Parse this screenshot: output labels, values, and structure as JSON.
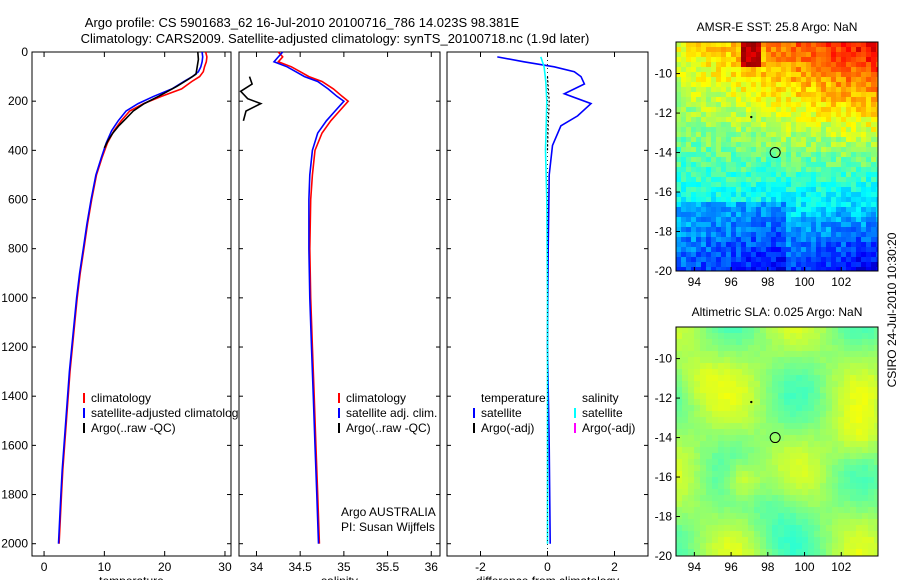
{
  "title": {
    "line1": "Argo profile: CS 5901683_62 16-Jul-2010 20100716_786 14.023S 98.381E",
    "line2": "Climatology: CARS2009. Satellite-adjusted climatology: synTS_20100718.nc (1.9d later)"
  },
  "side_label": "CSIRO 24-Jul-2010 10:30:20",
  "colors": {
    "climatology": "#ff0000",
    "satellite": "#0000ff",
    "argo": "#000000",
    "satellite_sal": "#00ffff",
    "argo_adj_sal": "#ff00ff"
  },
  "chart_data": [
    {
      "type": "line",
      "id": "temperature",
      "xlabel": "temperature",
      "xlim": [
        -2,
        31
      ],
      "ylim": [
        2050,
        0
      ],
      "xticks": [
        0,
        10,
        20,
        30
      ],
      "yticks": [
        0,
        200,
        400,
        600,
        800,
        1000,
        1200,
        1400,
        1600,
        1800,
        2000
      ],
      "legend": [
        "climatology",
        "satellite-adjusted climatology",
        "Argo(..raw -QC)"
      ],
      "series": [
        {
          "name": "climatology",
          "color": "#ff0000",
          "points": [
            [
              26.8,
              0
            ],
            [
              27.0,
              20
            ],
            [
              26.9,
              40
            ],
            [
              26.6,
              60
            ],
            [
              26.4,
              80
            ],
            [
              25.8,
              100
            ],
            [
              24.5,
              120
            ],
            [
              22.8,
              150
            ],
            [
              19.5,
              180
            ],
            [
              16.5,
              210
            ],
            [
              14.2,
              240
            ],
            [
              12.8,
              280
            ],
            [
              11.6,
              320
            ],
            [
              10.5,
              370
            ],
            [
              9.6,
              430
            ],
            [
              8.7,
              500
            ],
            [
              7.9,
              600
            ],
            [
              7.2,
              700
            ],
            [
              6.6,
              800
            ],
            [
              6.0,
              900
            ],
            [
              5.5,
              1000
            ],
            [
              5.1,
              1100
            ],
            [
              4.7,
              1200
            ],
            [
              4.3,
              1300
            ],
            [
              4.0,
              1400
            ],
            [
              3.7,
              1500
            ],
            [
              3.4,
              1600
            ],
            [
              3.1,
              1700
            ],
            [
              2.9,
              1800
            ],
            [
              2.7,
              1900
            ],
            [
              2.5,
              2000
            ]
          ]
        },
        {
          "name": "satellite-adjusted climatology",
          "color": "#0000ff",
          "points": [
            [
              26.2,
              0
            ],
            [
              26.3,
              20
            ],
            [
              26.2,
              40
            ],
            [
              26.0,
              60
            ],
            [
              25.6,
              80
            ],
            [
              24.6,
              100
            ],
            [
              23.2,
              120
            ],
            [
              21.2,
              150
            ],
            [
              18.2,
              180
            ],
            [
              15.6,
              210
            ],
            [
              13.6,
              240
            ],
            [
              12.3,
              280
            ],
            [
              11.2,
              320
            ],
            [
              10.3,
              370
            ],
            [
              9.5,
              430
            ],
            [
              8.6,
              500
            ],
            [
              7.8,
              600
            ],
            [
              7.1,
              700
            ],
            [
              6.5,
              800
            ],
            [
              5.9,
              900
            ],
            [
              5.4,
              1000
            ],
            [
              5.0,
              1100
            ],
            [
              4.6,
              1200
            ],
            [
              4.2,
              1300
            ],
            [
              3.9,
              1400
            ],
            [
              3.6,
              1500
            ],
            [
              3.3,
              1600
            ],
            [
              3.0,
              1700
            ],
            [
              2.8,
              1800
            ],
            [
              2.6,
              1900
            ],
            [
              2.4,
              2000
            ]
          ]
        },
        {
          "name": "Argo(..raw -QC)",
          "color": "#000000",
          "points": [
            [
              25.5,
              0
            ],
            [
              25.6,
              30
            ],
            [
              25.4,
              60
            ],
            [
              25.2,
              90
            ],
            [
              24.0,
              110
            ],
            [
              22.0,
              140
            ],
            [
              19.0,
              180
            ],
            [
              16.6,
              210
            ],
            [
              14.8,
              240
            ],
            [
              13.6,
              270
            ],
            [
              12.4,
              300
            ],
            [
              11.4,
              330
            ],
            [
              10.6,
              360
            ],
            [
              10.0,
              390
            ]
          ]
        }
      ]
    },
    {
      "type": "line",
      "id": "salinity",
      "xlabel": "salinity",
      "xlim": [
        33.8,
        36.1
      ],
      "ylim": [
        2050,
        0
      ],
      "xticks": [
        34,
        34.5,
        35,
        35.5,
        36
      ],
      "legend": [
        "climatology",
        "satellite adj. clim.",
        "Argo(..raw -QC)"
      ],
      "annotation": [
        "Argo AUSTRALIA",
        "PI: Susan Wijffels"
      ],
      "series": [
        {
          "name": "climatology",
          "color": "#ff0000",
          "points": [
            [
              34.25,
              0
            ],
            [
              34.3,
              20
            ],
            [
              34.25,
              40
            ],
            [
              34.4,
              60
            ],
            [
              34.5,
              80
            ],
            [
              34.6,
              100
            ],
            [
              34.75,
              120
            ],
            [
              34.88,
              150
            ],
            [
              34.98,
              180
            ],
            [
              35.05,
              200
            ],
            [
              34.95,
              240
            ],
            [
              34.85,
              280
            ],
            [
              34.75,
              330
            ],
            [
              34.67,
              400
            ],
            [
              34.64,
              500
            ],
            [
              34.62,
              600
            ],
            [
              34.61,
              800
            ],
            [
              34.62,
              1000
            ],
            [
              34.64,
              1200
            ],
            [
              34.66,
              1400
            ],
            [
              34.68,
              1600
            ],
            [
              34.7,
              1800
            ],
            [
              34.72,
              2000
            ]
          ]
        },
        {
          "name": "satellite adj. clim.",
          "color": "#0000ff",
          "points": [
            [
              34.3,
              0
            ],
            [
              34.25,
              20
            ],
            [
              34.2,
              40
            ],
            [
              34.35,
              60
            ],
            [
              34.45,
              80
            ],
            [
              34.55,
              100
            ],
            [
              34.7,
              120
            ],
            [
              34.82,
              150
            ],
            [
              34.92,
              180
            ],
            [
              35.0,
              200
            ],
            [
              34.9,
              240
            ],
            [
              34.8,
              280
            ],
            [
              34.7,
              330
            ],
            [
              34.64,
              400
            ],
            [
              34.61,
              500
            ],
            [
              34.6,
              600
            ],
            [
              34.6,
              800
            ],
            [
              34.61,
              1000
            ],
            [
              34.63,
              1200
            ],
            [
              34.65,
              1400
            ],
            [
              34.67,
              1600
            ],
            [
              34.69,
              1800
            ],
            [
              34.71,
              2000
            ]
          ]
        },
        {
          "name": "Argo(..raw -QC)",
          "color": "#000000",
          "points": [
            [
              33.92,
              100
            ],
            [
              33.95,
              130
            ],
            [
              33.82,
              160
            ],
            [
              33.9,
              190
            ],
            [
              34.05,
              210
            ],
            [
              33.88,
              240
            ],
            [
              33.85,
              280
            ]
          ]
        }
      ]
    },
    {
      "type": "line",
      "id": "difference",
      "xlabel": "difference from climatology",
      "xlim": [
        -3.0,
        3.0
      ],
      "ylim": [
        2050,
        0
      ],
      "xticks": [
        -2,
        0,
        2
      ],
      "legend_temperature": {
        "header": "temperature",
        "items": [
          "satellite",
          "Argo(-adj)"
        ]
      },
      "legend_salinity": {
        "header": "salinity",
        "items": [
          "satellite",
          "Argo(-adj)"
        ]
      },
      "series": [
        {
          "name": "temperature satellite",
          "color": "#0000ff",
          "points": [
            [
              -1.5,
              20
            ],
            [
              -0.7,
              40
            ],
            [
              0.2,
              60
            ],
            [
              0.8,
              80
            ],
            [
              1.0,
              100
            ],
            [
              1.1,
              130
            ],
            [
              0.5,
              170
            ],
            [
              1.3,
              210
            ],
            [
              0.9,
              260
            ],
            [
              0.4,
              300
            ],
            [
              0.15,
              380
            ],
            [
              0.05,
              500
            ],
            [
              0.02,
              800
            ],
            [
              0.0,
              1200
            ],
            [
              0.05,
              1600
            ],
            [
              0.08,
              2000
            ]
          ]
        },
        {
          "name": "salinity satellite",
          "color": "#00ffff",
          "points": [
            [
              -0.2,
              20
            ],
            [
              -0.1,
              60
            ],
            [
              -0.05,
              120
            ],
            [
              -0.02,
              200
            ],
            [
              -0.04,
              300
            ],
            [
              -0.06,
              400
            ],
            [
              -0.02,
              600
            ],
            [
              0.0,
              1000
            ],
            [
              0.0,
              1600
            ],
            [
              0.0,
              2000
            ]
          ]
        },
        {
          "name": "temperature Argo(-adj)",
          "color": "#000000",
          "dotted": true,
          "points": [
            [
              0.0,
              100
            ],
            [
              0.05,
              200
            ],
            [
              0.02,
              300
            ],
            [
              0.0,
              400
            ]
          ]
        }
      ]
    },
    {
      "type": "heatmap",
      "id": "sst",
      "title": "AMSR-E SST: 25.8  Argo: NaN",
      "xlim": [
        93,
        104
      ],
      "ylim": [
        -20,
        -8.4
      ],
      "xticks": [
        94,
        96,
        98,
        100,
        102
      ],
      "yticks": [
        -10,
        -12,
        -14,
        -16,
        -18,
        -20
      ],
      "marker": [
        98.4,
        -14.0
      ],
      "dot": [
        97.1,
        -12.2
      ]
    },
    {
      "type": "heatmap",
      "id": "sla",
      "title": "Altimetric SLA: 0.025  Argo: NaN",
      "xlim": [
        93,
        104
      ],
      "ylim": [
        -20,
        -8.4
      ],
      "xticks": [
        94,
        96,
        98,
        100,
        102
      ],
      "yticks": [
        -10,
        -12,
        -14,
        -16,
        -18,
        -20
      ],
      "marker": [
        98.4,
        -14.0
      ],
      "dot": [
        97.1,
        -12.2
      ]
    }
  ]
}
